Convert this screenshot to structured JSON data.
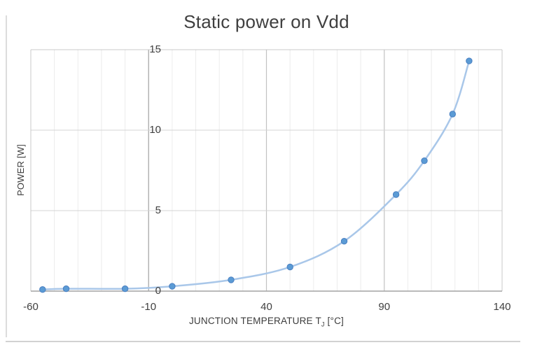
{
  "figure": {
    "title": "Static power on Vdd"
  },
  "chart_data": {
    "type": "scatter",
    "title": "Static power on Vdd",
    "xlabel": "JUNCTION TEMPERATURE TJ [°C]",
    "xlabel_parts": {
      "main": "JUNCTION TEMPERATURE T",
      "sub": "J",
      "unit": " [°C]"
    },
    "ylabel": "POWER [W]",
    "x": [
      -55,
      -45,
      -20,
      0,
      25,
      50,
      73,
      95,
      107,
      119,
      126
    ],
    "y": [
      0.1,
      0.15,
      0.15,
      0.3,
      0.7,
      1.5,
      3.1,
      6,
      8.1,
      11,
      14.3
    ],
    "xlim": [
      -60,
      140
    ],
    "ylim": [
      0,
      15
    ],
    "x_major_ticks": [
      -60,
      -10,
      40,
      90,
      140
    ],
    "x_minor_step": 10,
    "y_ticks": [
      0,
      5,
      10,
      15
    ],
    "grid": "on",
    "legend": "none",
    "smooth_line": true,
    "colors": {
      "line": "#a9c7e9",
      "marker_fill": "#5b9bd5",
      "marker_edge": "#4a7fc1",
      "grid_minor": "#ececec",
      "grid_major": "#c2c2c2",
      "grid_horizontal": "#d4d4d4",
      "plot_border": "#c8c8c8",
      "axis_line": "#a3a3a3",
      "vertical_axis_line": "#b3b3b3",
      "text": "#3f3f3f"
    }
  }
}
